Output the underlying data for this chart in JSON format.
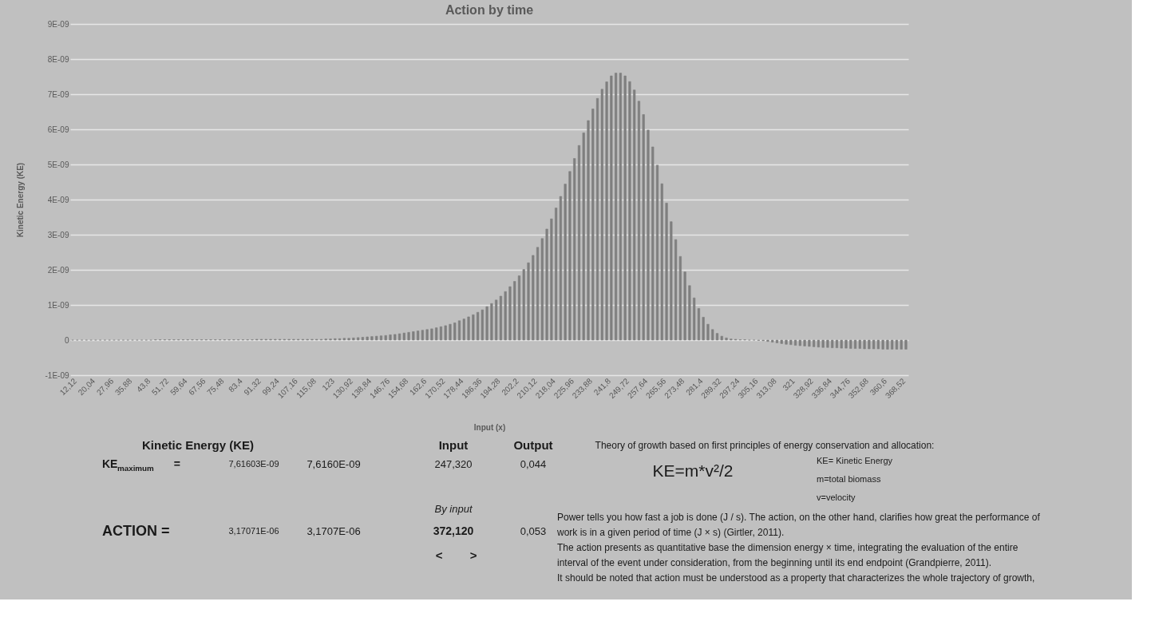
{
  "chart_data": {
    "type": "bar",
    "title": "Action by time",
    "xlabel": "Input (x)",
    "ylabel": "Kinetic Energy (KE)",
    "categories": [
      "12,12",
      null,
      null,
      null,
      "20,04",
      null,
      null,
      null,
      "27,96",
      null,
      null,
      null,
      "35,88",
      null,
      null,
      null,
      "43,8",
      null,
      null,
      null,
      "51,72",
      null,
      null,
      null,
      "59,64",
      null,
      null,
      null,
      "67,56",
      null,
      null,
      null,
      "75,48",
      null,
      null,
      null,
      "83,4",
      null,
      null,
      null,
      "91,32",
      null,
      null,
      null,
      "99,24",
      null,
      null,
      null,
      "107,16",
      null,
      null,
      null,
      "115,08",
      null,
      null,
      null,
      "123",
      null,
      null,
      null,
      "130,92",
      null,
      null,
      null,
      "138,84",
      null,
      null,
      null,
      "146,76",
      null,
      null,
      null,
      "154,68",
      null,
      null,
      null,
      "162,6",
      null,
      null,
      null,
      "170,52",
      null,
      null,
      null,
      "178,44",
      null,
      null,
      null,
      "186,36",
      null,
      null,
      null,
      "194,28",
      null,
      null,
      null,
      "202,2",
      null,
      null,
      null,
      "210,12",
      null,
      null,
      null,
      "218,04",
      null,
      null,
      null,
      "225,96",
      null,
      null,
      null,
      "233,88",
      null,
      null,
      null,
      "241,8",
      null,
      null,
      null,
      "249,72",
      null,
      null,
      null,
      "257,64",
      null,
      null,
      null,
      "265,56",
      null,
      null,
      null,
      "273,48",
      null,
      null,
      null,
      "281,4",
      null,
      null,
      null,
      "289,32",
      null,
      null,
      null,
      "297,24",
      null,
      null,
      null,
      "305,16",
      null,
      null,
      null,
      "313,08",
      null,
      null,
      null,
      "321",
      null,
      null,
      null,
      "328,92",
      null,
      null,
      null,
      "336,84",
      null,
      null,
      null,
      "344,76",
      null,
      null,
      null,
      "352,68",
      null,
      null,
      null,
      "360,6",
      null,
      null,
      null,
      "368,52",
      null
    ],
    "values": [
      0,
      0,
      0,
      0,
      0,
      0,
      0,
      0,
      0,
      0,
      0,
      0,
      0,
      0,
      0,
      0,
      0,
      0,
      1e-11,
      1e-11,
      1e-11,
      1e-11,
      1e-11,
      1e-11,
      1e-11,
      1e-11,
      1e-11,
      1e-11,
      1e-11,
      1e-11,
      1e-11,
      1e-11,
      1e-11,
      1e-11,
      1e-11,
      1e-11,
      1e-11,
      1e-11,
      1e-11,
      1e-11,
      2e-11,
      2e-11,
      2e-11,
      2e-11,
      2e-11,
      2e-11,
      2e-11,
      2e-11,
      2e-11,
      2e-11,
      2e-11,
      2e-11,
      2e-11,
      2e-11,
      2e-11,
      3e-11,
      3e-11,
      4e-11,
      4e-11,
      5e-11,
      5e-11,
      6e-11,
      7e-11,
      8e-11,
      9e-11,
      1e-10,
      1.1e-10,
      1.2e-10,
      1.3e-10,
      1.5e-10,
      1.6e-10,
      1.8e-10,
      2e-10,
      2.2e-10,
      2.4e-10,
      2.6e-10,
      2.8e-10,
      3e-10,
      3.2e-10,
      3.5e-10,
      3.8e-10,
      4.1e-10,
      4.5e-10,
      4.9e-10,
      5.5e-10,
      6e-10,
      6.6e-10,
      7.2e-10,
      7.9e-10,
      8.6e-10,
      9.5e-10,
      1.04e-09,
      1.14e-09,
      1.25e-09,
      1.38e-09,
      1.52e-09,
      1.67e-09,
      1.83e-09,
      2.01e-09,
      2.2e-09,
      2.41e-09,
      2.64e-09,
      2.89e-09,
      3.16e-09,
      3.45e-09,
      3.76e-09,
      4.09e-09,
      4.44e-09,
      4.8e-09,
      5.17e-09,
      5.54e-09,
      5.9e-09,
      6.25e-09,
      6.58e-09,
      6.88e-09,
      7.14e-09,
      7.35e-09,
      7.52e-09,
      7.6e-09,
      7.6e-09,
      7.52e-09,
      7.36e-09,
      7.12e-09,
      6.8e-09,
      6.42e-09,
      5.98e-09,
      5.5e-09,
      4.98e-09,
      4.45e-09,
      3.9e-09,
      3.37e-09,
      2.86e-09,
      2.38e-09,
      1.94e-09,
      1.55e-09,
      1.2e-09,
      9e-10,
      6.5e-10,
      4.5e-10,
      3e-10,
      1.9e-10,
      1.1e-10,
      6e-11,
      3e-11,
      2e-11,
      1e-11,
      1e-11,
      0,
      0,
      -1e-11,
      -2e-11,
      -4e-11,
      -6e-11,
      -8e-11,
      -1e-10,
      -1.2e-10,
      -1.3e-10,
      -1.5e-10,
      -1.6e-10,
      -1.7e-10,
      -1.8e-10,
      -1.9e-10,
      -2e-10,
      -2.1e-10,
      -2.1e-10,
      -2.2e-10,
      -2.2e-10,
      -2.3e-10,
      -2.3e-10,
      -2.4e-10,
      -2.4e-10,
      -2.4e-10,
      -2.5e-10,
      -2.5e-10,
      -2.5e-10,
      -2.5e-10,
      -2.6e-10,
      -2.6e-10,
      -2.6e-10,
      -2.6e-10,
      -2.6e-10,
      -2.6e-10
    ],
    "color": "#7f7f7f",
    "ylim": [
      -1e-09,
      9e-09
    ],
    "yticks": [
      {
        "value": -1e-09,
        "label": "-1E-09"
      },
      0,
      {
        "value": 1e-09,
        "label": "1E-09"
      },
      {
        "value": 2e-09,
        "label": "2E-09"
      },
      {
        "value": 3e-09,
        "label": "3E-09"
      },
      {
        "value": 4e-09,
        "label": "4E-09"
      },
      {
        "value": 5e-09,
        "label": "5E-09"
      },
      {
        "value": 6e-09,
        "label": "6E-09"
      },
      {
        "value": 7e-09,
        "label": "7E-09"
      },
      {
        "value": 8e-09,
        "label": "8E-09"
      },
      {
        "value": 9e-09,
        "label": "9E-09"
      }
    ],
    "grid": "y",
    "annotations": [
      "Kinetic Energy (KE)",
      "Input",
      "Output",
      "KE$_{maximum}$ =",
      "7,61603E-09",
      "7,6160E-09",
      "247,320",
      "0,044",
      "By input",
      "ACTION =",
      "3,17071E-06",
      "3,1707E-06",
      "372,120",
      "0,053",
      "<",
      ">",
      "Theory of growth based on first principles of energy conservation and allocation:",
      "KE=m*v²/2",
      "KE= Kinetic Energy",
      "m=total biomass",
      "v=velocity",
      "Power tells you how fast a job is done (J / s). The action, on the other hand, clarifies how great the performance of",
      "work is in a given period of time (J × s) (Girtler, 2011).",
      "The action presents as quantitative base the dimension energy × time, integrating the evaluation of the entire",
      "interval of the event under consideration, from the beginning until its end endpoint (Grandpierre, 2011).",
      "It should be noted that action must be understood as a property that characterizes the whole trajectory of growth,"
    ]
  }
}
